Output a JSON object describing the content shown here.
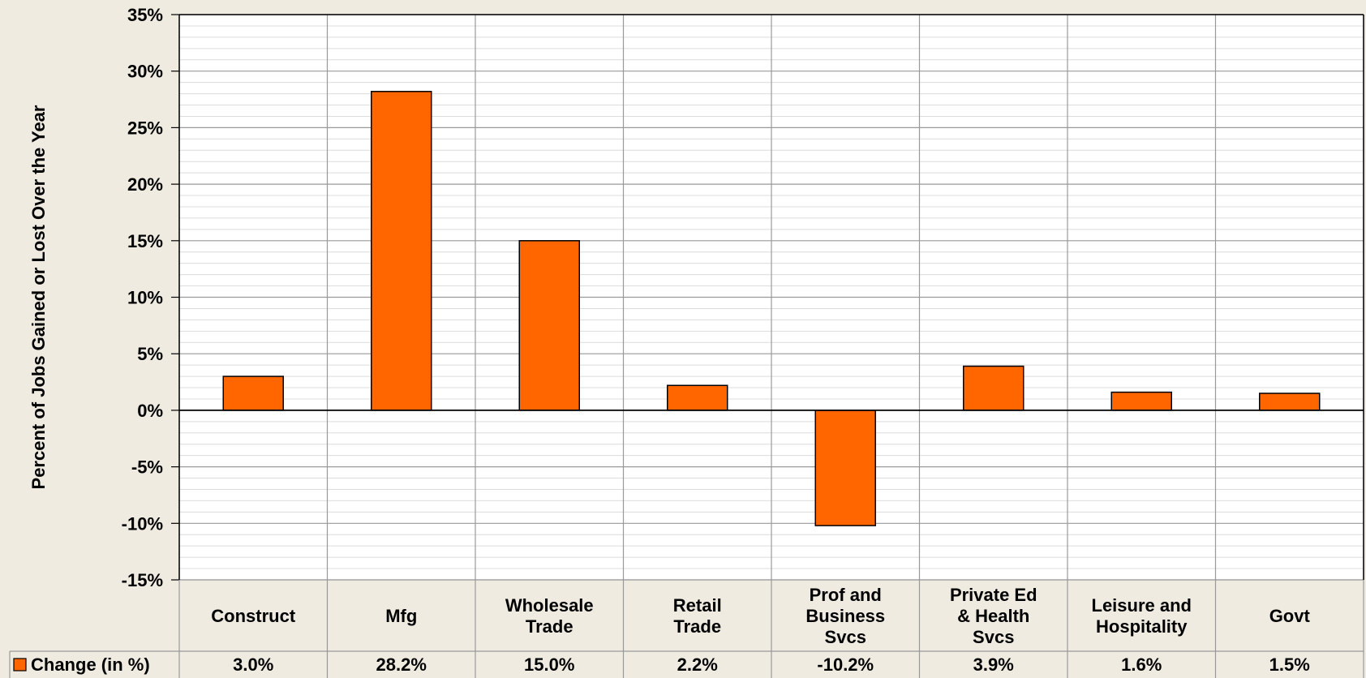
{
  "chart_data": {
    "type": "bar",
    "title": "",
    "xlabel": "",
    "ylabel": "Percent of Jobs Gained or Lost Over the Year",
    "ylim": [
      -15,
      35
    ],
    "y_major_step": 5,
    "y_minor_step": 1,
    "y_tick_suffix": "%",
    "grid": true,
    "legend_position": "bottom-left (data table)",
    "data_table": true,
    "categories": [
      [
        "Construct"
      ],
      [
        "Mfg"
      ],
      [
        "Wholesale",
        "Trade"
      ],
      [
        "Retail",
        "Trade"
      ],
      [
        "Prof and",
        "Business",
        "Svcs"
      ],
      [
        "Private Ed",
        "& Health",
        "Svcs"
      ],
      [
        "Leisure and",
        "Hospitality"
      ],
      [
        "Govt"
      ]
    ],
    "series": [
      {
        "name": "Change (in %)",
        "color": "#ff6600",
        "values": [
          3.0,
          28.2,
          15.0,
          2.2,
          -10.2,
          3.9,
          1.6,
          1.5
        ],
        "value_labels": [
          "3.0%",
          "28.2%",
          "15.0%",
          "2.2%",
          "-10.2%",
          "3.9%",
          "1.6%",
          "1.5%"
        ]
      }
    ]
  }
}
